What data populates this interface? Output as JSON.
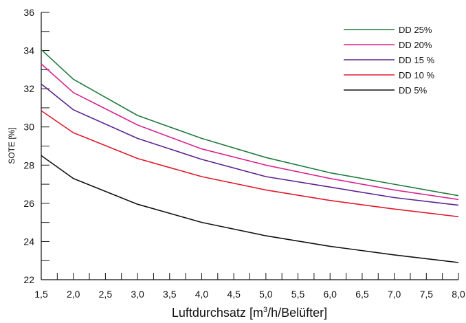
{
  "chart_data": {
    "type": "line",
    "xlabel_main": "Luftdurchsatz [m",
    "xlabel_sup": "3",
    "xlabel_tail": "/h/Belüfter]",
    "ylabel": "SOTE [%]",
    "xlim": [
      1.5,
      8.0
    ],
    "ylim": [
      22,
      36
    ],
    "x_ticks": [
      "1,5",
      "2,0",
      "2,5",
      "3,0",
      "3,5",
      "4,0",
      "4,5",
      "5,0",
      "5,5",
      "6,0",
      "6,5",
      "7,0",
      "7,5",
      "8,0"
    ],
    "y_ticks": [
      "22",
      "24",
      "26",
      "28",
      "30",
      "32",
      "34",
      "36"
    ],
    "legend_position": "top-right",
    "grid": false,
    "x": [
      1.5,
      2.0,
      3.0,
      4.0,
      5.0,
      6.0,
      7.0,
      8.0
    ],
    "series": [
      {
        "name": "DD 25%",
        "color": "#1e7a3c",
        "values": [
          34.05,
          32.5,
          30.6,
          29.4,
          28.4,
          27.6,
          27.0,
          26.4
        ]
      },
      {
        "name": "DD 20%",
        "color": "#d9238f",
        "values": [
          33.3,
          31.8,
          30.1,
          28.85,
          28.0,
          27.3,
          26.7,
          26.2
        ]
      },
      {
        "name": "DD 15 %",
        "color": "#5a2290",
        "values": [
          32.25,
          30.9,
          29.4,
          28.3,
          27.4,
          26.85,
          26.3,
          25.9
        ]
      },
      {
        "name": "DD 10 %",
        "color": "#e0192b",
        "values": [
          30.85,
          29.7,
          28.35,
          27.4,
          26.7,
          26.15,
          25.7,
          25.3
        ]
      },
      {
        "name": "DD 5%",
        "color": "#111111",
        "values": [
          28.5,
          27.3,
          25.95,
          25.0,
          24.3,
          23.75,
          23.3,
          22.9
        ]
      }
    ]
  }
}
